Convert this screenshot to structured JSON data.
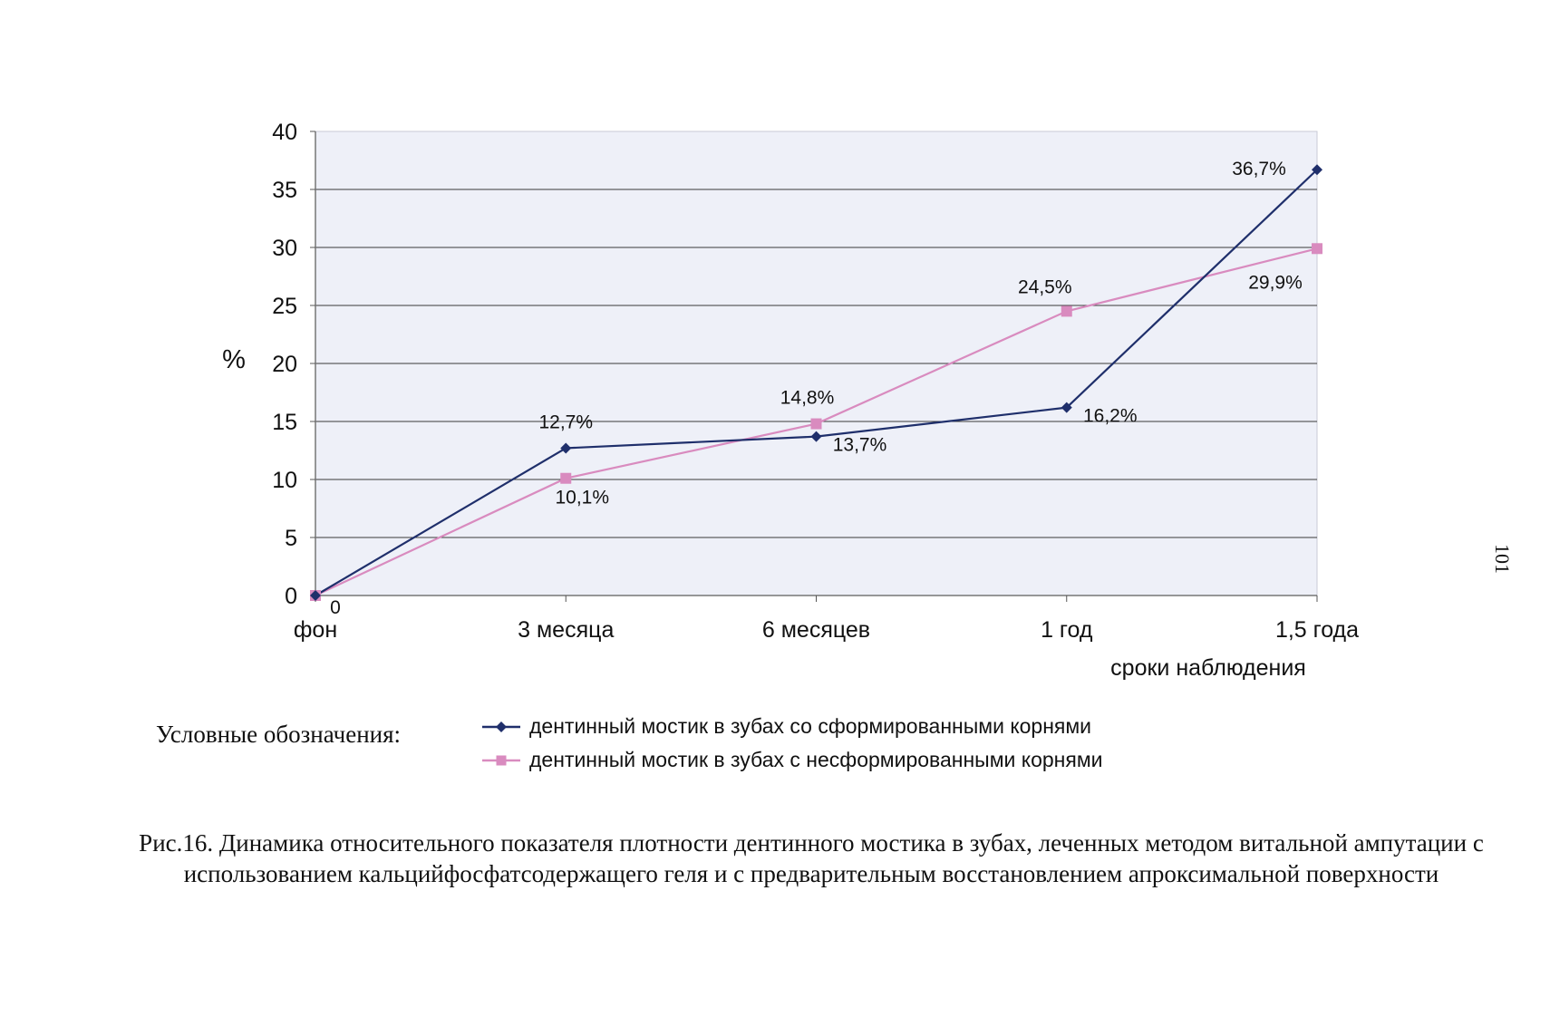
{
  "chart_data": {
    "type": "line",
    "categories": [
      "фон",
      "3 месяца",
      "6 месяцев",
      "1 год",
      "1,5 года"
    ],
    "xlabel": "сроки наблюдения",
    "ylabel": "%",
    "ylim": [
      0,
      40
    ],
    "yticks": [
      0,
      5,
      10,
      15,
      20,
      25,
      30,
      35,
      40
    ],
    "grid": true,
    "series": [
      {
        "name": "дентинный мостик в зубах со сформированными корнями",
        "values": [
          0,
          12.7,
          13.7,
          16.2,
          36.7
        ],
        "labels": [
          "0",
          "12,7%",
          "13,7%",
          "16,2%",
          "36,7%"
        ],
        "color": "#1f2f6b",
        "marker": "diamond"
      },
      {
        "name": "дентинный мостик в зубах с несформированными корнями",
        "values": [
          0,
          10.1,
          14.8,
          24.5,
          29.9
        ],
        "labels": [
          "",
          "10,1%",
          "14,8%",
          "24,5%",
          "29,9%"
        ],
        "color": "#d98bbf",
        "marker": "square"
      }
    ]
  },
  "legend_prefix": "Условные обозначения:",
  "caption": "Рис.16.  Динамика относительного показателя плотности дентинного мостика в зубах, леченных методом     витальной ампутации с использованием кальцийфосфатсодержащего геля и с предварительным восстановлением апроксимальной поверхности",
  "page_number": "101"
}
